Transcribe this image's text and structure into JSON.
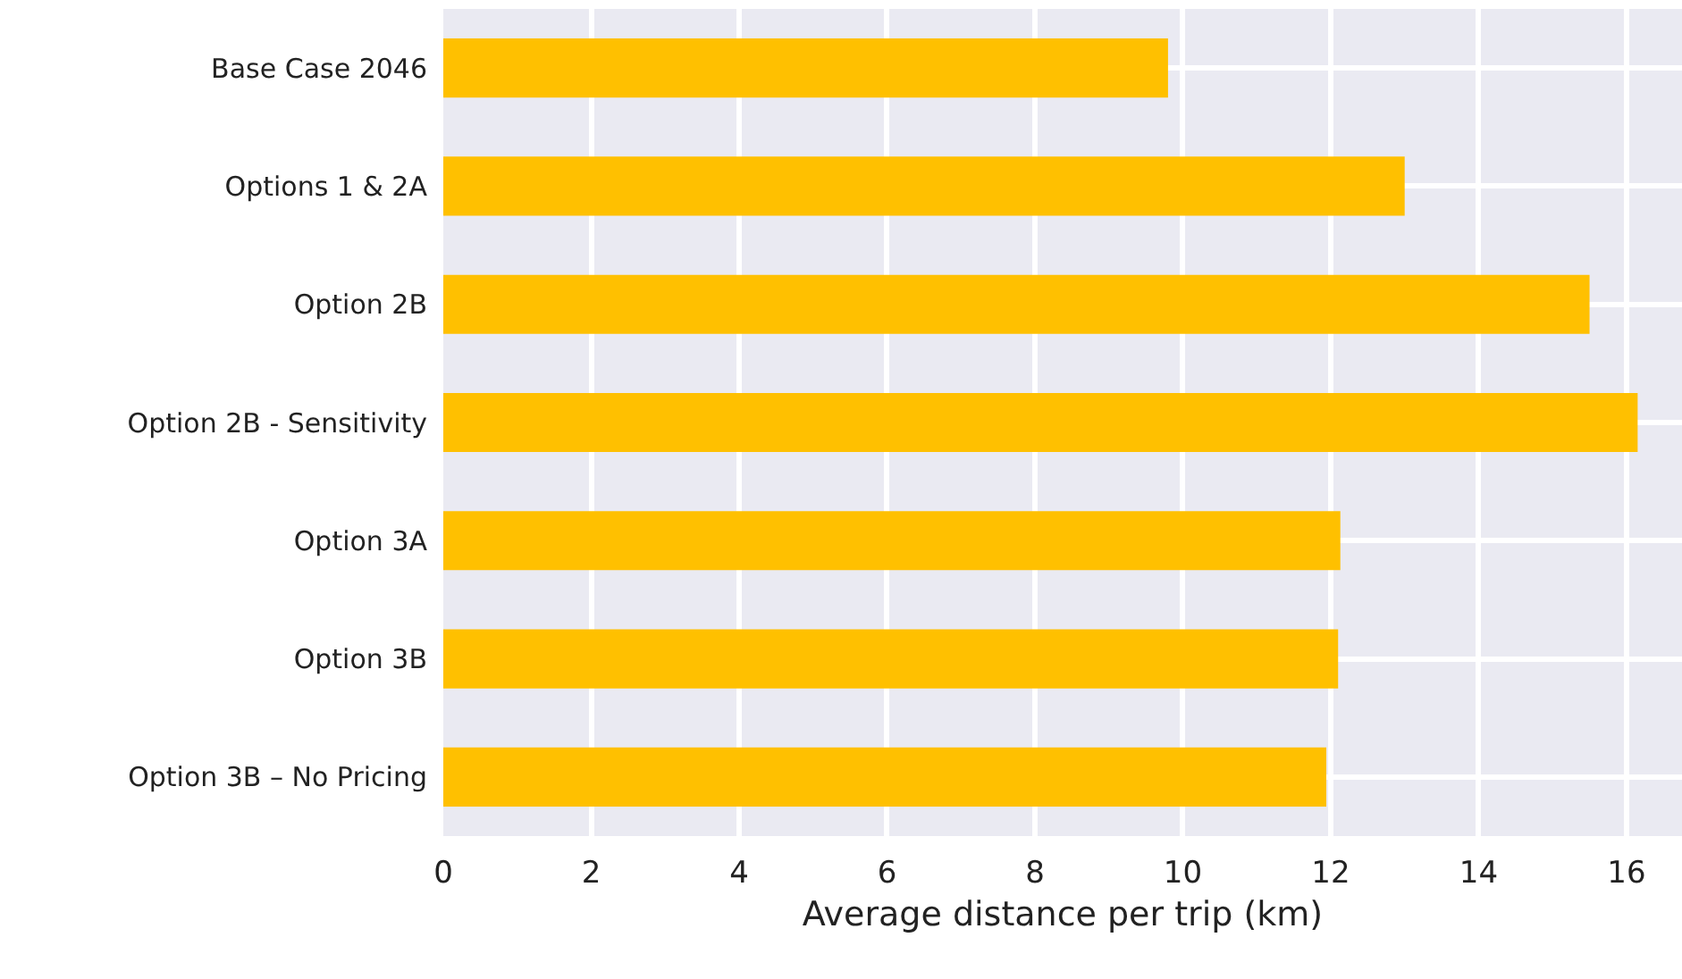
{
  "chart_data": {
    "type": "bar",
    "orientation": "horizontal",
    "xlabel": "Average distance per trip (km)",
    "categories": [
      "Base Case 2046",
      "Options 1 & 2A",
      "Option 2B",
      "Option 2B - Sensitivity",
      "Option 3A",
      "Option 3B",
      "Option 3B – No Pricing"
    ],
    "values": [
      9.8,
      13.0,
      15.5,
      16.15,
      12.13,
      12.1,
      11.94
    ],
    "color": "#ffc000",
    "xlim": [
      0,
      16.75
    ],
    "xticks": [
      0,
      2,
      4,
      6,
      8,
      10,
      12,
      14,
      16
    ],
    "grid": true
  }
}
